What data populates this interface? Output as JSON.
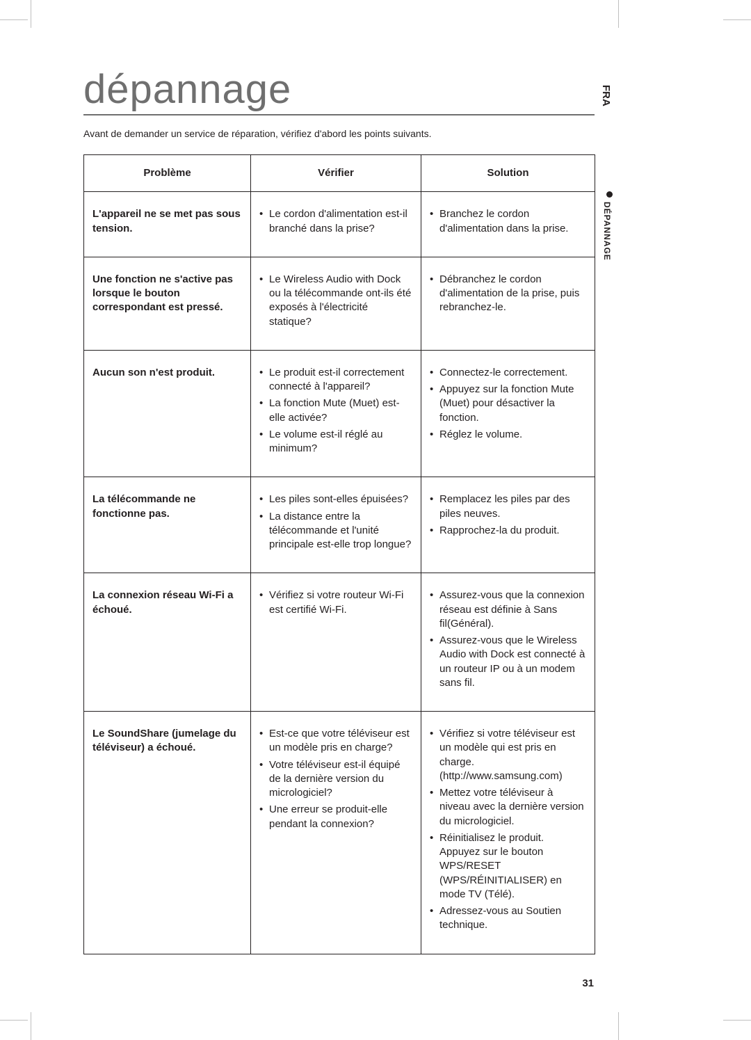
{
  "title": "dépannage",
  "intro": "Avant de demander un service de réparation, vérifiez d'abord les points suivants.",
  "side": {
    "lang": "FRA",
    "section": "DÉPANNAGE"
  },
  "page_number": "31",
  "table": {
    "headers": {
      "problem": "Problème",
      "check": "Vérifier",
      "solution": "Solution"
    },
    "rows": [
      {
        "problem": "L'appareil ne se met pas sous tension.",
        "check": [
          "Le cordon d'alimentation est-il branché dans la prise?"
        ],
        "solution": [
          "Branchez le cordon d'alimentation dans la prise."
        ]
      },
      {
        "problem": "Une fonction ne s'active pas lorsque le bouton correspondant est pressé.",
        "check": [
          "Le Wireless Audio with Dock ou la télécommande ont-ils été exposés à l'électricité statique?"
        ],
        "solution": [
          "Débranchez le cordon d'alimentation de la prise, puis rebranchez-le."
        ]
      },
      {
        "problem": "Aucun son n'est produit.",
        "check": [
          "Le produit est-il correctement connecté à l'appareil?",
          "La fonction Mute (Muet) est-elle activée?",
          "Le volume est-il réglé au minimum?"
        ],
        "solution": [
          "Connectez-le correctement.",
          "Appuyez sur la fonction Mute (Muet) pour désactiver la fonction.",
          "Réglez le volume."
        ]
      },
      {
        "problem": "La télécommande ne fonctionne pas.",
        "check": [
          "Les piles sont-elles épuisées?",
          "La distance entre la télécommande et l'unité principale est-elle trop longue?"
        ],
        "solution": [
          "Remplacez les piles par des piles neuves.",
          "Rapprochez-la du produit."
        ]
      },
      {
        "problem": "La connexion réseau Wi-Fi a échoué.",
        "check": [
          "Vérifiez si votre routeur Wi-Fi est certifié Wi-Fi."
        ],
        "solution": [
          "Assurez-vous que la connexion réseau est définie à Sans fil(Général).",
          "Assurez-vous que le Wireless Audio with Dock est connecté à un routeur IP ou à un modem sans fil."
        ]
      },
      {
        "problem": "Le SoundShare (jumelage du téléviseur) a échoué.",
        "check": [
          "Est-ce que votre téléviseur est un modèle pris en charge?",
          "Votre téléviseur est-il équipé de la dernière version du micrologiciel?",
          "Une erreur se produit-elle pendant la connexion?"
        ],
        "solution": [
          "Vérifiez si votre téléviseur est un modèle qui est pris en charge. (http://www.samsung.com)",
          "Mettez votre téléviseur à niveau avec la dernière version du micrologiciel.",
          "Réinitialisez le produit. Appuyez sur le bouton WPS/RESET (WPS/RÉINITIALISER) en mode TV (Télé).",
          "Adressez-vous au Soutien technique."
        ]
      }
    ]
  }
}
